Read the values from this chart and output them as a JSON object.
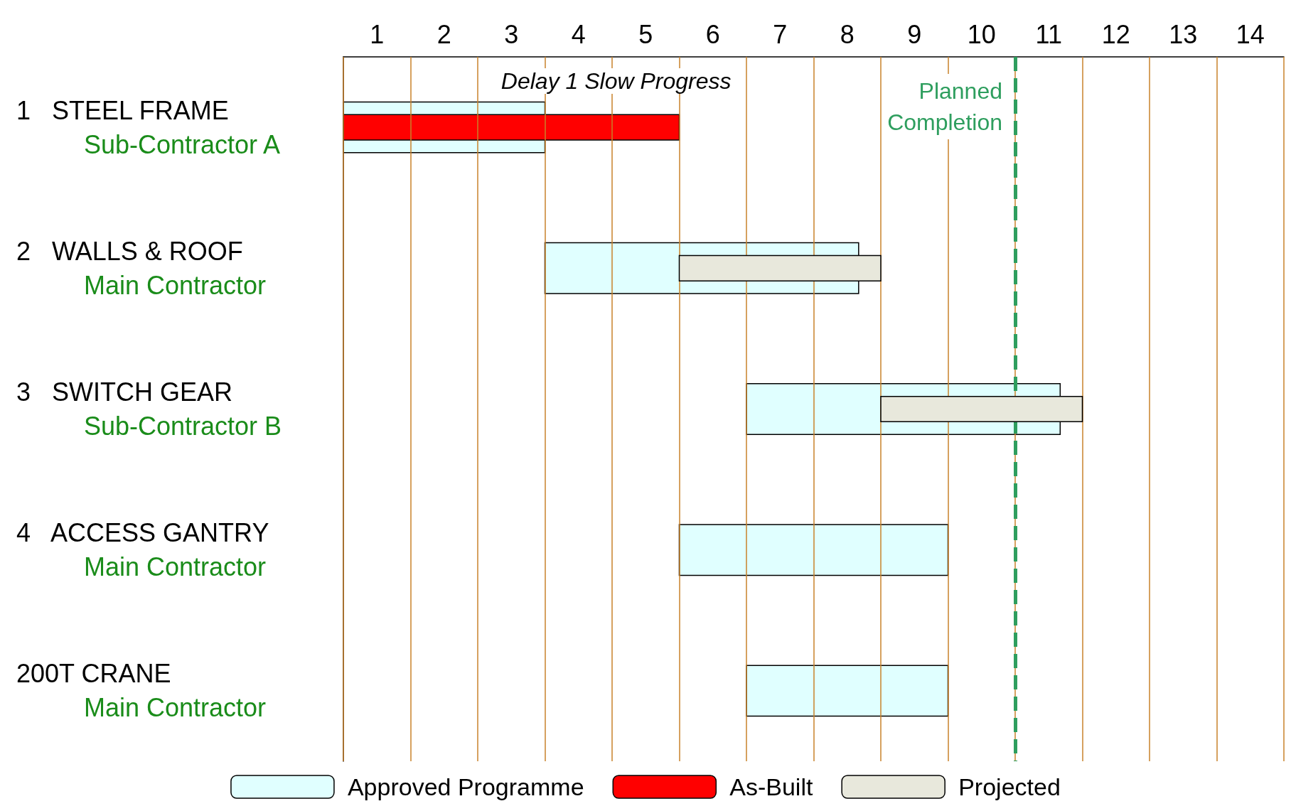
{
  "chart_data": {
    "type": "bar",
    "orientation": "horizontal",
    "categories": [
      "1   STEEL FRAME\nSub-Contractor A",
      "2   WALLS & ROOF\nMain Contractor",
      "3   SWITCH GEAR\nSub-Contractor B",
      "4   ACCESS GANTRY\nMain Contractor",
      "200T CRANE\nMain Contractor"
    ],
    "series": [
      {
        "name": "Approved Programme",
        "color": "#e0ffff",
        "values": [
          3,
          4.67,
          4.67,
          4,
          3
        ],
        "base": [
          0,
          3,
          6,
          5,
          6
        ]
      },
      {
        "name": "As-Built",
        "color": "#ff0000",
        "values": [
          5,
          null,
          null,
          null,
          null
        ],
        "base": [
          0,
          null,
          null,
          null,
          null
        ]
      },
      {
        "name": "Projected",
        "color": "#e8e8dc",
        "values": [
          null,
          3,
          3,
          null,
          null
        ],
        "base": [
          null,
          5,
          8,
          null,
          null
        ]
      }
    ],
    "xlim": [
      0,
      14
    ],
    "xticks": [
      {
        "value": 0,
        "label": null
      },
      {
        "value": 0.5,
        "label": "1"
      },
      {
        "value": 1,
        "label": null
      },
      {
        "value": 1.5,
        "label": "2"
      },
      {
        "value": 2,
        "label": null
      },
      {
        "value": 2.5,
        "label": "3"
      },
      {
        "value": 3,
        "label": null
      },
      {
        "value": 3.5,
        "label": "4"
      },
      {
        "value": 4,
        "label": null
      },
      {
        "value": 4.5,
        "label": "5"
      },
      {
        "value": 5,
        "label": null
      },
      {
        "value": 5.5,
        "label": "6"
      },
      {
        "value": 6,
        "label": null
      },
      {
        "value": 6.5,
        "label": "7"
      },
      {
        "value": 7,
        "label": null
      },
      {
        "value": 7.5,
        "label": "8"
      },
      {
        "value": 8,
        "label": null
      },
      {
        "value": 8.5,
        "label": "9"
      },
      {
        "value": 9,
        "label": null
      },
      {
        "value": 9.5,
        "label": "10"
      },
      {
        "value": 10,
        "label": null
      },
      {
        "value": 10.5,
        "label": "11"
      },
      {
        "value": 11,
        "label": null
      },
      {
        "value": 11.5,
        "label": "12"
      },
      {
        "value": 12,
        "label": null
      },
      {
        "value": 12.5,
        "label": "13"
      },
      {
        "value": 13,
        "label": null
      },
      {
        "value": 13.5,
        "label": "14"
      },
      {
        "value": 14,
        "label": null
      }
    ],
    "grid": "x",
    "legend": "bottom",
    "ref_lines": [
      {
        "axis": "x",
        "value": 10,
        "label": "Planned\nCompletion",
        "color": "#2e9e5e",
        "line_style": "dashed"
      }
    ],
    "annotations": [
      "Delay 1 Slow Progress"
    ]
  }
}
